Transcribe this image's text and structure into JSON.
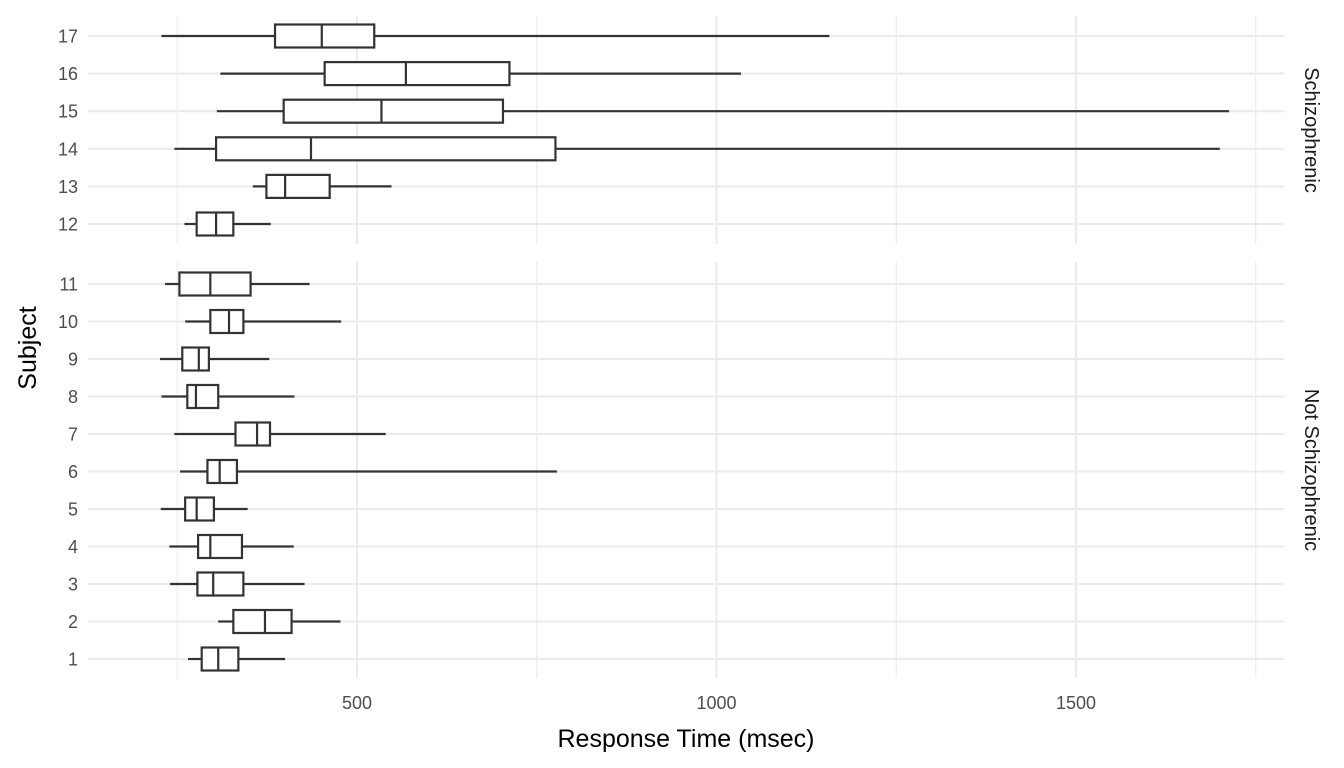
{
  "chart_data": {
    "type": "boxplot",
    "orientation": "horizontal",
    "xlabel": "Response Time (msec)",
    "ylabel": "Subject",
    "x_ticks": [
      500,
      1000,
      1500
    ],
    "x_tick_labels": [
      "500",
      "1000",
      "1500"
    ],
    "xlim": [
      130,
      1790
    ],
    "grid": true,
    "panels": [
      {
        "strip_label": "Schizophrenic",
        "boxes": [
          {
            "subject": "12",
            "min": 260,
            "q1": 277,
            "median": 304,
            "q3": 328,
            "max": 380
          },
          {
            "subject": "13",
            "min": 355,
            "q1": 374,
            "median": 400,
            "q3": 462,
            "max": 548
          },
          {
            "subject": "14",
            "min": 246,
            "q1": 304,
            "median": 436,
            "q3": 776,
            "max": 1700
          },
          {
            "subject": "15",
            "min": 305,
            "q1": 398,
            "median": 534,
            "q3": 703,
            "max": 1713
          },
          {
            "subject": "16",
            "min": 310,
            "q1": 455,
            "median": 568,
            "q3": 712,
            "max": 1034
          },
          {
            "subject": "17",
            "min": 228,
            "q1": 386,
            "median": 451,
            "q3": 524,
            "max": 1157
          }
        ]
      },
      {
        "strip_label": "Not Schizophrenic",
        "boxes": [
          {
            "subject": "1",
            "min": 265,
            "q1": 284,
            "median": 307,
            "q3": 335,
            "max": 400
          },
          {
            "subject": "2",
            "min": 307,
            "q1": 328,
            "median": 372,
            "q3": 409,
            "max": 477
          },
          {
            "subject": "3",
            "min": 240,
            "q1": 278,
            "median": 300,
            "q3": 342,
            "max": 427
          },
          {
            "subject": "4",
            "min": 239,
            "q1": 279,
            "median": 296,
            "q3": 340,
            "max": 412
          },
          {
            "subject": "5",
            "min": 227,
            "q1": 261,
            "median": 277,
            "q3": 301,
            "max": 348
          },
          {
            "subject": "6",
            "min": 254,
            "q1": 292,
            "median": 309,
            "q3": 333,
            "max": 778
          },
          {
            "subject": "7",
            "min": 246,
            "q1": 331,
            "median": 361,
            "q3": 379,
            "max": 540
          },
          {
            "subject": "8",
            "min": 228,
            "q1": 264,
            "median": 276,
            "q3": 307,
            "max": 413
          },
          {
            "subject": "9",
            "min": 226,
            "q1": 257,
            "median": 280,
            "q3": 294,
            "max": 378
          },
          {
            "subject": "10",
            "min": 261,
            "q1": 296,
            "median": 322,
            "q3": 342,
            "max": 478
          },
          {
            "subject": "11",
            "min": 233,
            "q1": 253,
            "median": 296,
            "q3": 352,
            "max": 434
          }
        ]
      }
    ]
  }
}
